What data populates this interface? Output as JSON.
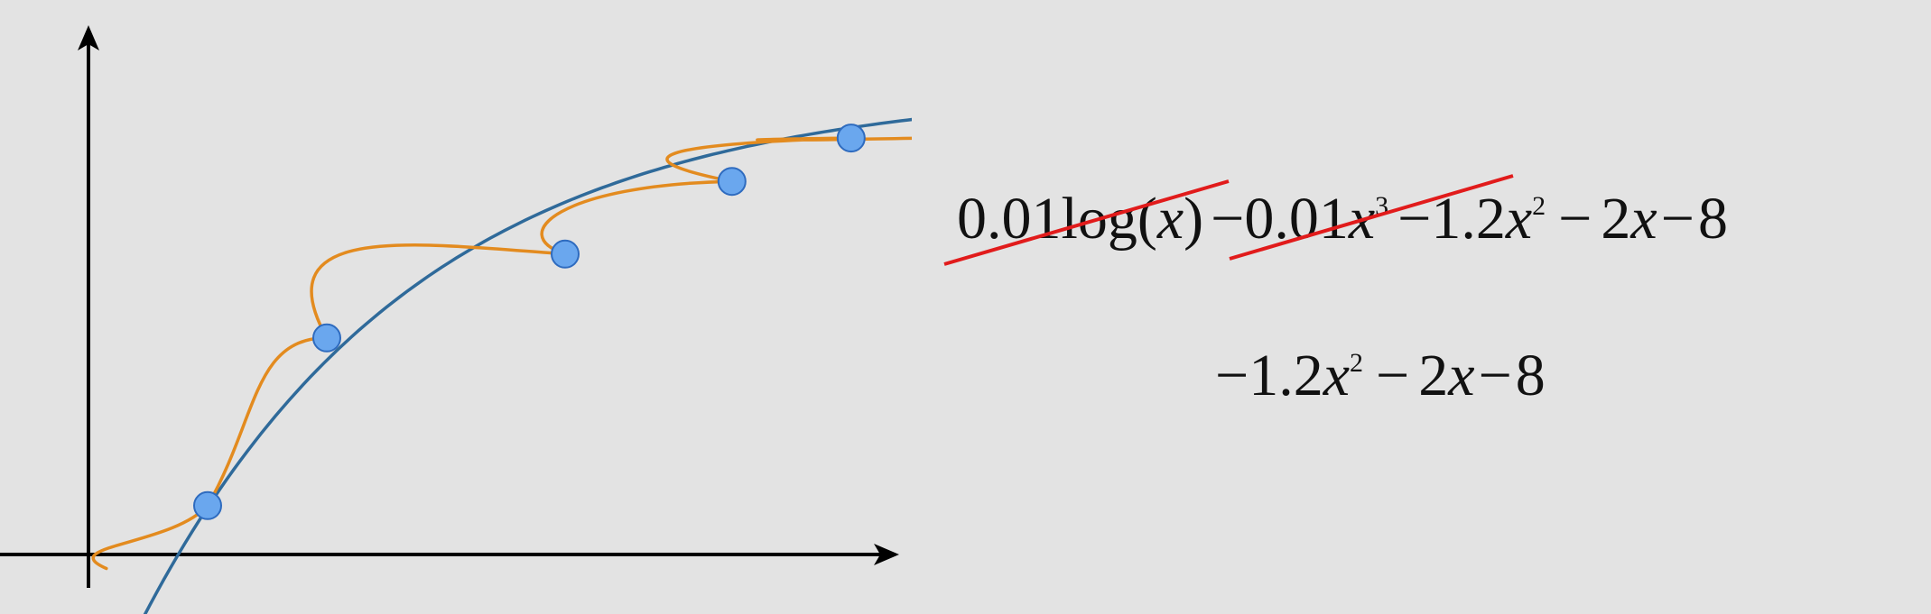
{
  "colors": {
    "background": "#e3e3e3",
    "axis": "#000000",
    "simple_curve": "#2f6a9a",
    "complex_curve": "#e38b1f",
    "point_fill": "#6aa7ee",
    "point_stroke": "#2e6bbf",
    "strike": "#e11b1b"
  },
  "points": [
    {
      "x": 1.0,
      "y": 0.35
    },
    {
      "x": 2.0,
      "y": 1.55
    },
    {
      "x": 4.0,
      "y": 2.15
    },
    {
      "x": 5.4,
      "y": 2.67
    },
    {
      "x": 6.4,
      "y": 2.98
    }
  ],
  "equation_full": {
    "term1_coef": "0.01",
    "term1_fn": "log",
    "term1_open": "(",
    "term1_var": "x",
    "term1_close": ")",
    "minus1": "−",
    "term2_coef": "0.01",
    "term2_var": "x",
    "term2_exp": "3",
    "minus2": "−",
    "term3_coef": "1.2",
    "term3_var": "x",
    "term3_exp": "2",
    "minus3": "−",
    "term4": "2",
    "term4_var": "x",
    "minus4": "−",
    "term5": "8"
  },
  "equation_reduced": {
    "lead_minus": "−",
    "term1_coef": "1.2",
    "term1_var": "x",
    "term1_exp": "2",
    "minus1": "−",
    "term2": "2",
    "term2_var": "x",
    "minus2": "−",
    "term3": "8"
  }
}
